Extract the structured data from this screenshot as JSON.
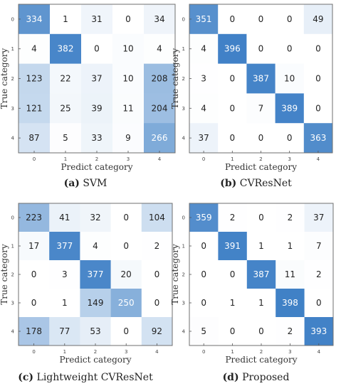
{
  "chart_data": [
    {
      "type": "heatmap",
      "caption_letter": "(a)",
      "caption_text": "SVM",
      "xlabel": "Predict category",
      "ylabel": "True category",
      "x_ticks": [
        "0",
        "1",
        "2",
        "3",
        "4"
      ],
      "y_ticks": [
        "0",
        "1",
        "2",
        "3",
        "4"
      ],
      "values": [
        [
          334,
          1,
          31,
          0,
          34
        ],
        [
          4,
          382,
          0,
          10,
          4
        ],
        [
          123,
          22,
          37,
          10,
          208
        ],
        [
          121,
          25,
          39,
          11,
          204
        ],
        [
          87,
          5,
          33,
          9,
          266
        ]
      ]
    },
    {
      "type": "heatmap",
      "caption_letter": "(b)",
      "caption_text": "CVResNet",
      "xlabel": "Predict category",
      "ylabel": "True category",
      "x_ticks": [
        "0",
        "1",
        "2",
        "3",
        "4"
      ],
      "y_ticks": [
        "0",
        "1",
        "2",
        "3",
        "4"
      ],
      "values": [
        [
          351,
          0,
          0,
          0,
          49
        ],
        [
          4,
          396,
          0,
          0,
          0
        ],
        [
          3,
          0,
          387,
          10,
          0
        ],
        [
          4,
          0,
          7,
          389,
          0
        ],
        [
          37,
          0,
          0,
          0,
          363
        ]
      ]
    },
    {
      "type": "heatmap",
      "caption_letter": "(c)",
      "caption_text": "Lightweight CVResNet",
      "xlabel": "Predict category",
      "ylabel": "True category",
      "x_ticks": [
        "0",
        "1",
        "2",
        "3",
        "4"
      ],
      "y_ticks": [
        "0",
        "1",
        "2",
        "3",
        "4"
      ],
      "values": [
        [
          223,
          41,
          32,
          0,
          104
        ],
        [
          17,
          377,
          4,
          0,
          2
        ],
        [
          0,
          3,
          377,
          20,
          0
        ],
        [
          0,
          1,
          149,
          250,
          0
        ],
        [
          178,
          77,
          53,
          0,
          92
        ]
      ]
    },
    {
      "type": "heatmap",
      "caption_letter": "(d)",
      "caption_text": "Proposed",
      "xlabel": "Predict category",
      "ylabel": "True category",
      "x_ticks": [
        "0",
        "1",
        "2",
        "3",
        "4"
      ],
      "y_ticks": [
        "0",
        "1",
        "2",
        "3",
        "4"
      ],
      "values": [
        [
          359,
          2,
          0,
          2,
          37
        ],
        [
          0,
          391,
          1,
          1,
          7
        ],
        [
          0,
          0,
          387,
          11,
          2
        ],
        [
          0,
          1,
          1,
          398,
          0
        ],
        [
          5,
          0,
          0,
          2,
          393
        ]
      ]
    }
  ],
  "colors": {
    "low": "#ffffff",
    "high": "#3f80c6",
    "frame": "#6f6f6f"
  },
  "color_scale_max": 400
}
